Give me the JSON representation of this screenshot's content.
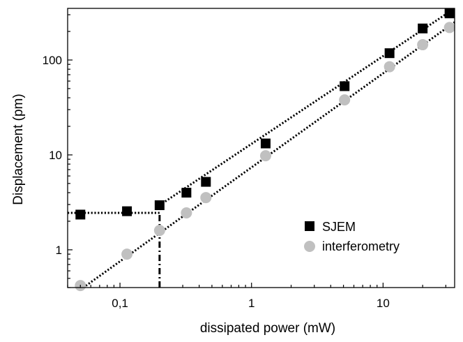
{
  "chart_data": {
    "type": "scatter",
    "xlabel": "dissipated power (mW)",
    "ylabel": "Displacement (pm)",
    "xscale": "log",
    "yscale": "log",
    "xlim": [
      0.04,
      35
    ],
    "ylim": [
      0.4,
      350
    ],
    "xticks": [
      {
        "value": 0.1,
        "label": "0,1"
      },
      {
        "value": 1,
        "label": "1"
      },
      {
        "value": 10,
        "label": "10"
      }
    ],
    "yticks": [
      {
        "value": 1,
        "label": "1"
      },
      {
        "value": 10,
        "label": "10"
      },
      {
        "value": 100,
        "label": "100"
      }
    ],
    "grid": false,
    "legend_position": "bottom-right",
    "series": [
      {
        "name": "SJEM",
        "marker": "square",
        "color": "#000000",
        "points": [
          {
            "x": 0.05,
            "y": 2.35
          },
          {
            "x": 0.113,
            "y": 2.55
          },
          {
            "x": 0.2,
            "y": 2.95
          },
          {
            "x": 0.32,
            "y": 4.0
          },
          {
            "x": 0.45,
            "y": 5.2
          },
          {
            "x": 1.28,
            "y": 13.2
          },
          {
            "x": 5.1,
            "y": 53
          },
          {
            "x": 11.2,
            "y": 118
          },
          {
            "x": 20,
            "y": 215
          },
          {
            "x": 32,
            "y": 310
          }
        ]
      },
      {
        "name": "interferometry",
        "marker": "circle",
        "color": "#c0c0c0",
        "points": [
          {
            "x": 0.05,
            "y": 0.42
          },
          {
            "x": 0.113,
            "y": 0.9
          },
          {
            "x": 0.2,
            "y": 1.6
          },
          {
            "x": 0.32,
            "y": 2.45
          },
          {
            "x": 0.45,
            "y": 3.55
          },
          {
            "x": 1.28,
            "y": 9.8
          },
          {
            "x": 5.1,
            "y": 38
          },
          {
            "x": 11.2,
            "y": 85
          },
          {
            "x": 20,
            "y": 145
          },
          {
            "x": 32,
            "y": 220
          }
        ]
      }
    ],
    "fit_lines": [
      {
        "name": "SJEM-fit",
        "style": "dotted",
        "points": [
          {
            "x": 0.2,
            "y": 2.95
          },
          {
            "x": 35,
            "y": 350
          }
        ]
      },
      {
        "name": "SJEM-noise-floor",
        "style": "dotted",
        "points": [
          {
            "x": 0.04,
            "y": 2.45
          },
          {
            "x": 0.2,
            "y": 2.45
          }
        ]
      },
      {
        "name": "interferometry-fit",
        "style": "dotted",
        "points": [
          {
            "x": 0.05,
            "y": 0.38
          },
          {
            "x": 35,
            "y": 250
          }
        ]
      },
      {
        "name": "detection-limit",
        "style": "dash-dot",
        "points": [
          {
            "x": 0.2,
            "y": 0.4
          },
          {
            "x": 0.2,
            "y": 2.45
          }
        ]
      }
    ]
  }
}
